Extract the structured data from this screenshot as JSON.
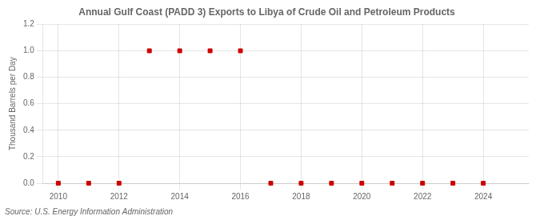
{
  "chart_data": {
    "type": "scatter",
    "title": "Annual Gulf Coast (PADD 3) Exports to Libya of Crude Oil and Petroleum Products",
    "ylabel": "Thousand Barrels per Day",
    "source": "Source: U.S. Energy Information Administration",
    "x": [
      2010,
      2011,
      2012,
      2013,
      2014,
      2015,
      2016,
      2017,
      2018,
      2019,
      2020,
      2021,
      2022,
      2023,
      2024
    ],
    "values": [
      0.0,
      0.0,
      0.0,
      1.0,
      1.0,
      1.0,
      1.0,
      0.0,
      0.0,
      0.0,
      0.0,
      0.0,
      0.0,
      0.0,
      0.0
    ],
    "color": "#cc0000",
    "marker": "square",
    "xlim": [
      2009.5,
      2025.5
    ],
    "xticks": [
      2010,
      2012,
      2014,
      2016,
      2018,
      2020,
      2022,
      2024
    ],
    "ylim": [
      0.0,
      1.2
    ],
    "yticks": [
      {
        "value": 0.0,
        "label": "0.0"
      },
      0.2,
      0.4,
      0.6,
      0.8,
      {
        "value": 1.0,
        "label": "1.0"
      },
      1.2
    ],
    "grid": true
  }
}
